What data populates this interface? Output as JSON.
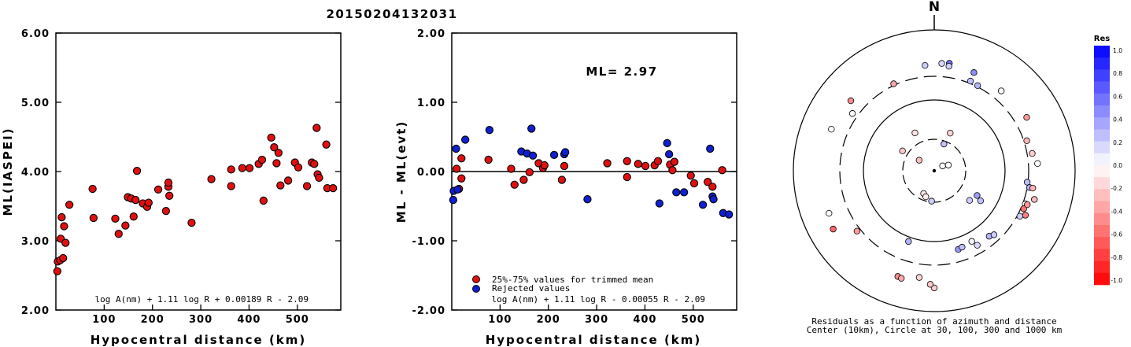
{
  "title": "20150204132031",
  "chart_data": [
    {
      "type": "scatter",
      "xlabel": "Hypocentral distance (km)",
      "ylabel": "ML(IASPEI)",
      "xlim": [
        0,
        590
      ],
      "ylim": [
        2.0,
        6.0
      ],
      "xticks": [
        "100",
        "200",
        "300",
        "400",
        "500"
      ],
      "yticks": [
        "2.00",
        "3.00",
        "4.00",
        "5.00",
        "6.00"
      ],
      "formula": "log A(nm) + 1.11 log R + 0.00189 R - 2.09",
      "marker_color": "#e01010",
      "points": [
        [
          3,
          2.56
        ],
        [
          4,
          2.7
        ],
        [
          9,
          2.72
        ],
        [
          10,
          3.03
        ],
        [
          12,
          3.34
        ],
        [
          15,
          2.75
        ],
        [
          17,
          3.21
        ],
        [
          20,
          2.97
        ],
        [
          28,
          3.52
        ],
        [
          76,
          3.75
        ],
        [
          78,
          3.33
        ],
        [
          123,
          3.32
        ],
        [
          130,
          3.1
        ],
        [
          144,
          3.22
        ],
        [
          149,
          3.63
        ],
        [
          156,
          3.61
        ],
        [
          161,
          3.35
        ],
        [
          165,
          3.59
        ],
        [
          168,
          4.01
        ],
        [
          180,
          3.54
        ],
        [
          189,
          3.49
        ],
        [
          192,
          3.55
        ],
        [
          212,
          3.74
        ],
        [
          228,
          3.43
        ],
        [
          233,
          3.78
        ],
        [
          233,
          3.84
        ],
        [
          235,
          3.65
        ],
        [
          281,
          3.26
        ],
        [
          322,
          3.89
        ],
        [
          363,
          4.03
        ],
        [
          363,
          3.79
        ],
        [
          386,
          4.05
        ],
        [
          401,
          4.05
        ],
        [
          420,
          4.11
        ],
        [
          427,
          4.17
        ],
        [
          430,
          3.58
        ],
        [
          446,
          4.49
        ],
        [
          452,
          4.35
        ],
        [
          457,
          4.12
        ],
        [
          461,
          4.27
        ],
        [
          465,
          3.8
        ],
        [
          481,
          3.87
        ],
        [
          495,
          4.13
        ],
        [
          502,
          4.06
        ],
        [
          520,
          3.79
        ],
        [
          530,
          4.13
        ],
        [
          535,
          4.11
        ],
        [
          540,
          4.63
        ],
        [
          542,
          3.96
        ],
        [
          545,
          3.91
        ],
        [
          560,
          4.39
        ],
        [
          562,
          3.76
        ],
        [
          574,
          3.76
        ]
      ]
    },
    {
      "type": "scatter",
      "xlabel": "Hypocentral distance (km)",
      "ylabel": "ML - ML(evt)",
      "xlim": [
        0,
        590
      ],
      "ylim": [
        -2.0,
        2.0
      ],
      "xticks": [
        "100",
        "200",
        "300",
        "400",
        "500"
      ],
      "yticks": [
        "-2.00",
        "-1.00",
        "0.00",
        "1.00",
        "2.00"
      ],
      "annotation": "ML= 2.97",
      "formula": "log A(nm) + 1.11 log R - 0.00055 R - 2.09",
      "legend": [
        {
          "label": "25%-75% values for trimmed mean",
          "color": "#e01010"
        },
        {
          "label": "Rejected values",
          "color": "#1020d0"
        }
      ],
      "series": [
        {
          "name": "25%-75% values for trimmed mean",
          "color": "#e01010",
          "points": [
            [
              10,
              0.04
            ],
            [
              15,
              -0.25
            ],
            [
              20,
              0.19
            ],
            [
              20,
              -0.1
            ],
            [
              76,
              0.17
            ],
            [
              123,
              0.04
            ],
            [
              130,
              -0.19
            ],
            [
              149,
              -0.12
            ],
            [
              161,
              -0.01
            ],
            [
              180,
              0.12
            ],
            [
              189,
              0.05
            ],
            [
              192,
              0.09
            ],
            [
              228,
              -0.12
            ],
            [
              233,
              0.08
            ],
            [
              322,
              0.12
            ],
            [
              363,
              0.15
            ],
            [
              363,
              -0.08
            ],
            [
              386,
              0.11
            ],
            [
              401,
              0.08
            ],
            [
              420,
              0.09
            ],
            [
              427,
              0.15
            ],
            [
              452,
              0.1
            ],
            [
              457,
              0.02
            ],
            [
              461,
              0.14
            ],
            [
              495,
              -0.06
            ],
            [
              502,
              -0.17
            ],
            [
              530,
              -0.15
            ],
            [
              540,
              -0.22
            ],
            [
              560,
              0.02
            ]
          ]
        },
        {
          "name": "Rejected values",
          "color": "#1020d0",
          "points": [
            [
              3,
              -0.41
            ],
            [
              4,
              -0.28
            ],
            [
              9,
              0.33
            ],
            [
              12,
              -0.26
            ],
            [
              28,
              0.46
            ],
            [
              78,
              0.6
            ],
            [
              144,
              0.29
            ],
            [
              156,
              0.26
            ],
            [
              165,
              0.62
            ],
            [
              168,
              0.23
            ],
            [
              212,
              0.24
            ],
            [
              233,
              0.25
            ],
            [
              235,
              0.28
            ],
            [
              281,
              -0.4
            ],
            [
              430,
              -0.46
            ],
            [
              446,
              0.41
            ],
            [
              450,
              0.25
            ],
            [
              465,
              -0.3
            ],
            [
              481,
              -0.3
            ],
            [
              520,
              -0.48
            ],
            [
              535,
              0.33
            ],
            [
              540,
              -0.36
            ],
            [
              542,
              -0.4
            ],
            [
              562,
              -0.6
            ],
            [
              574,
              -0.62
            ]
          ]
        }
      ]
    },
    {
      "type": "polar-scatter",
      "north_label": "N",
      "caption_line1": "Residuals as a function of azimuth and distance",
      "caption_line2": "Center (10km), Circle at 30, 100, 300 and 1000 km",
      "legend_title": "Res",
      "legend_ticks": [
        "1.0",
        "0.8",
        "0.6",
        "0.4",
        "0.2",
        "0.0",
        "-0.2",
        "-0.4",
        "-0.6",
        "-0.8",
        "-1.0"
      ],
      "color_scale": {
        "positive": "#0000ff",
        "zero": "#ffffff",
        "negative": "#ff0000",
        "range": [
          -1.0,
          1.0
        ]
      },
      "rings_km": [
        30,
        100,
        300,
        1000
      ],
      "stations_residual_azimuth_deg_distance_km": [
        [
          -0.12,
          -27,
          42
        ],
        [
          -0.18,
          23,
          40
        ],
        [
          0.25,
          20,
          27
        ],
        [
          0.0,
          60,
          14
        ],
        [
          0.0,
          68,
          17
        ],
        [
          -0.25,
          -55,
          19
        ],
        [
          -0.22,
          -58,
          36
        ],
        [
          -0.1,
          -155,
          24
        ],
        [
          -0.08,
          -162,
          26
        ],
        [
          0.2,
          -175,
          29
        ],
        [
          0.2,
          130,
          47
        ],
        [
          0.38,
          120,
          52
        ],
        [
          0.25,
          123,
          62
        ],
        [
          0.3,
          -160,
          123
        ],
        [
          0.4,
          163,
          170
        ],
        [
          0.25,
          160,
          163
        ],
        [
          0.15,
          150,
          203
        ],
        [
          0.05,
          152,
          153
        ],
        [
          0.3,
          140,
          198
        ],
        [
          0.0,
          110,
          320
        ],
        [
          0.25,
          97,
          289
        ],
        [
          0.3,
          100,
          319
        ],
        [
          -0.5,
          116,
          360
        ],
        [
          -0.55,
          113,
          322
        ],
        [
          0.2,
          118,
          320
        ],
        [
          -0.4,
          110,
          338
        ],
        [
          -0.28,
          106,
          386
        ],
        [
          -0.15,
          -172,
          424
        ],
        [
          -0.2,
          -180,
          541
        ],
        [
          -0.22,
          -178,
          494
        ],
        [
          -0.45,
          -161,
          471
        ],
        [
          -0.35,
          -163,
          479
        ],
        [
          -0.4,
          -128,
          329
        ],
        [
          -0.6,
          -120,
          534
        ],
        [
          0.0,
          -112,
          492
        ],
        [
          0.2,
          -5,
          402
        ],
        [
          0.15,
          4,
          422
        ],
        [
          0.55,
          8,
          432
        ],
        [
          0.45,
          22,
          404
        ],
        [
          0.25,
          22,
          318
        ],
        [
          0.3,
          27,
          309
        ],
        [
          0.0,
          40,
          387
        ],
        [
          -0.4,
          60,
          413
        ],
        [
          -0.45,
          -50,
          436
        ],
        [
          0.0,
          -55,
          345
        ],
        [
          0.0,
          -68,
          460
        ],
        [
          -0.3,
          72,
          323
        ],
        [
          -0.2,
          80,
          342
        ],
        [
          0.0,
          86,
          380
        ],
        [
          -0.35,
          -25,
          312
        ],
        [
          0.2,
          8,
          400
        ],
        [
          -0.3,
          100,
          347
        ],
        [
          0.2,
          137,
          218
        ]
      ]
    }
  ]
}
